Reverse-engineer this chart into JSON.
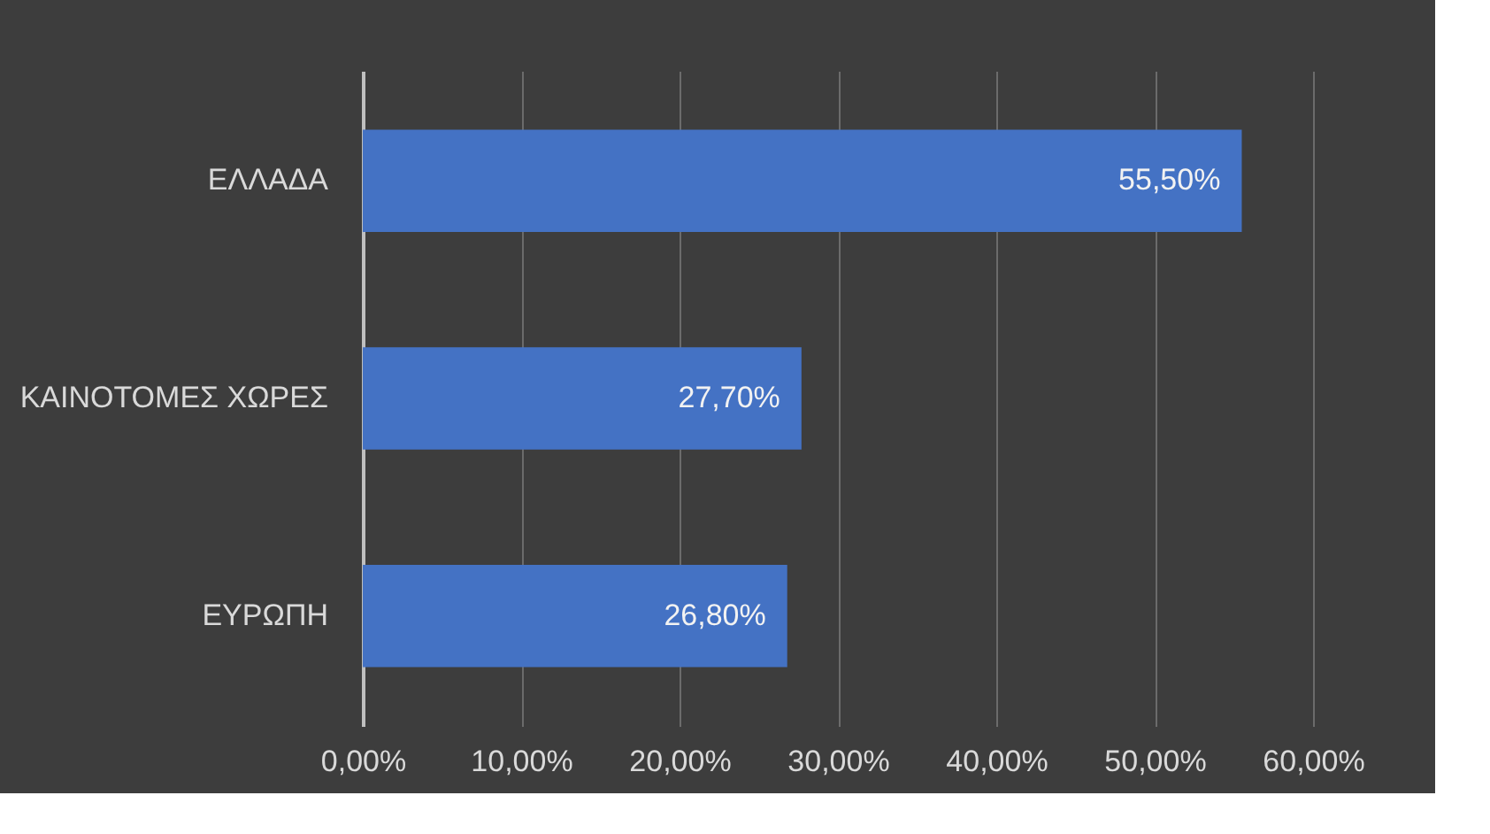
{
  "chart_data": {
    "type": "bar",
    "orientation": "horizontal",
    "categories": [
      "ΕΛΛΑΔΑ",
      "ΚΑΙΝΟΤΟΜΕΣ ΧΩΡΕΣ",
      "ΕΥΡΩΠΗ"
    ],
    "values": [
      55.5,
      27.7,
      26.8
    ],
    "value_labels": [
      "55,50%",
      "27,70%",
      "26,80%"
    ],
    "color": "#4472c4",
    "xlim": [
      0,
      60
    ],
    "xticks": [
      {
        "value": 0,
        "label": "0,00%"
      },
      {
        "value": 10,
        "label": "10,00%"
      },
      {
        "value": 20,
        "label": "20,00%"
      },
      {
        "value": 30,
        "label": "30,00%"
      },
      {
        "value": 40,
        "label": "40,00%"
      },
      {
        "value": 50,
        "label": "50,00%"
      },
      {
        "value": 60,
        "label": "60,00%"
      }
    ],
    "grid": "x"
  }
}
